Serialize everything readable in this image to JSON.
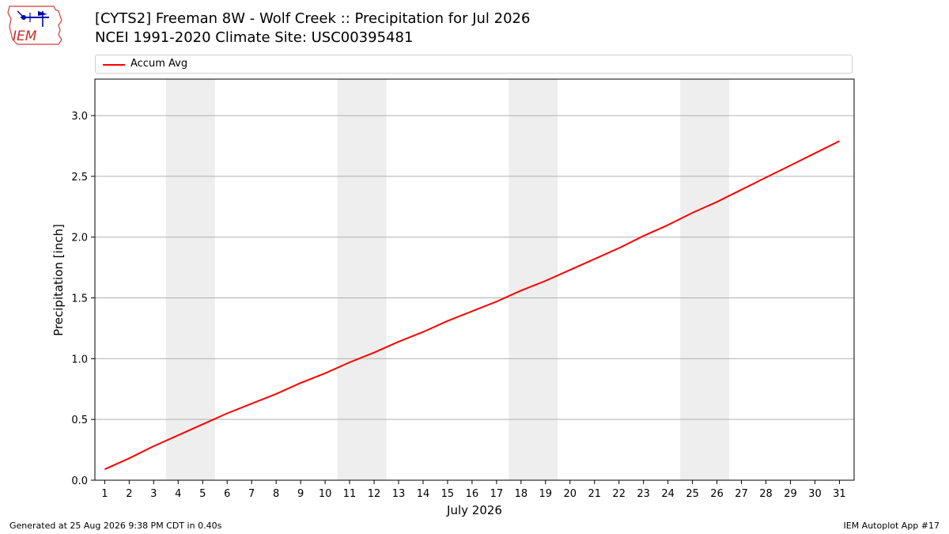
{
  "header": {
    "title": "[CYTS2] Freeman 8W - Wolf Creek :: Precipitation for Jul 2026",
    "subtitle": "NCEI 1991-2020 Climate Site: USC00395481",
    "logo_text": "IEM"
  },
  "footer": {
    "left": "Generated at 25 Aug 2026 9:38 PM CDT in 0.40s",
    "right": "IEM Autoplot App #17"
  },
  "chart_data": {
    "type": "line",
    "title": "[CYTS2] Freeman 8W - Wolf Creek :: Precipitation for Jul 2026",
    "xlabel": "July 2026",
    "ylabel": "Precipitation [inch]",
    "xlim": [
      0.6,
      31.6
    ],
    "ylim": [
      0,
      3.3
    ],
    "x_ticks": [
      1,
      2,
      3,
      4,
      5,
      6,
      7,
      8,
      9,
      10,
      11,
      12,
      13,
      14,
      15,
      16,
      17,
      18,
      19,
      20,
      21,
      22,
      23,
      24,
      25,
      26,
      27,
      28,
      29,
      30,
      31
    ],
    "y_ticks": [
      0.0,
      0.5,
      1.0,
      1.5,
      2.0,
      2.5,
      3.0
    ],
    "y_tick_labels": [
      "0.0",
      "0.5",
      "1.0",
      "1.5",
      "2.0",
      "2.5",
      "3.0"
    ],
    "grid": "horizontal",
    "legend_position": "top",
    "weekend_bands": [
      [
        3.5,
        5.5
      ],
      [
        10.5,
        12.5
      ],
      [
        17.5,
        19.5
      ],
      [
        24.5,
        26.5
      ]
    ],
    "band_color": "#eeeeee",
    "series": [
      {
        "name": "Accum Avg",
        "color": "#ff0000",
        "x": [
          1,
          2,
          3,
          4,
          5,
          6,
          7,
          8,
          9,
          10,
          11,
          12,
          13,
          14,
          15,
          16,
          17,
          18,
          19,
          20,
          21,
          22,
          23,
          24,
          25,
          26,
          27,
          28,
          29,
          30,
          31
        ],
        "values": [
          0.09,
          0.18,
          0.28,
          0.37,
          0.46,
          0.55,
          0.63,
          0.71,
          0.8,
          0.88,
          0.97,
          1.05,
          1.14,
          1.22,
          1.31,
          1.39,
          1.47,
          1.56,
          1.64,
          1.73,
          1.82,
          1.91,
          2.01,
          2.1,
          2.2,
          2.29,
          2.39,
          2.49,
          2.59,
          2.69,
          2.79
        ]
      }
    ]
  }
}
